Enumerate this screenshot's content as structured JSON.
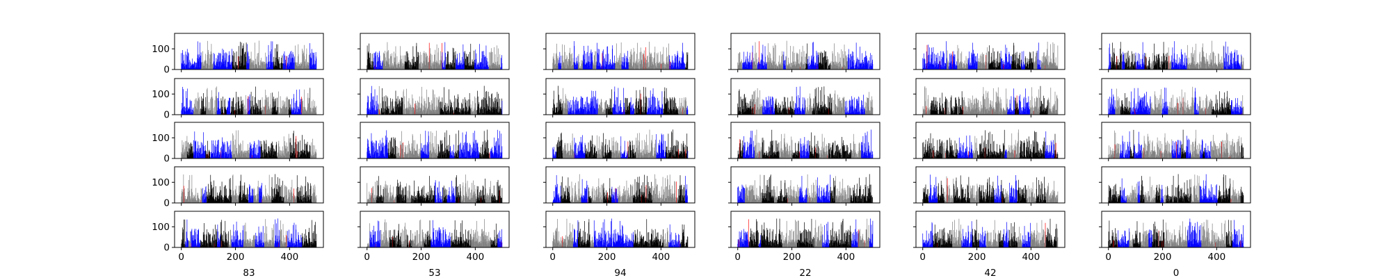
{
  "figure": {
    "rows": 5,
    "cols": 6,
    "xlabels": [
      "83",
      "53",
      "94",
      "22",
      "42",
      "0"
    ]
  },
  "chart_data": {
    "type": "bar",
    "layout": "grid-5x6",
    "xlim": [
      -25,
      525
    ],
    "ylim": [
      0,
      175
    ],
    "xticks": [
      0,
      200,
      400
    ],
    "xtick_labels": [
      "0",
      "200",
      "400"
    ],
    "yticks": [
      0,
      100
    ],
    "ytick_labels": [
      "0",
      "100"
    ],
    "bars_per_panel": 500,
    "value_range": [
      0,
      150
    ],
    "colors": {
      "primary": "#000000",
      "secondary": "#808080",
      "tertiary": "#0000ff",
      "accent": "#ff0000"
    },
    "grid": false,
    "column_titles": [
      "83",
      "53",
      "94",
      "22",
      "42",
      "0"
    ]
  }
}
